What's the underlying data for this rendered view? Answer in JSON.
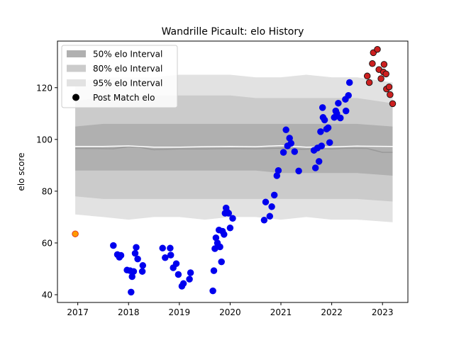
{
  "chart_data": {
    "type": "scatter",
    "title": "Wandrille Picault: elo History",
    "xlabel": "",
    "ylabel": "elo score",
    "xlim": [
      2016.6,
      2023.5
    ],
    "ylim": [
      37,
      138
    ],
    "xticks": [
      2017,
      2018,
      2019,
      2020,
      2021,
      2022,
      2023
    ],
    "xtick_labels": [
      "2017",
      "2018",
      "2019",
      "2020",
      "2021",
      "2022",
      "2023"
    ],
    "yticks": [
      40,
      60,
      80,
      100,
      120
    ],
    "ytick_labels": [
      "40",
      "60",
      "80",
      "100",
      "120"
    ],
    "grid": false,
    "legend_position": "top-left",
    "legend": [
      {
        "label": "50% elo Interval",
        "kind": "band",
        "color": "#b0b0b0"
      },
      {
        "label": "80% elo Interval",
        "kind": "band",
        "color": "#cbcbcb"
      },
      {
        "label": "95% elo Interval",
        "kind": "band",
        "color": "#e2e2e2"
      },
      {
        "label": "Post Match elo",
        "kind": "marker",
        "color": "#000000"
      }
    ],
    "bands": {
      "x": [
        2016.95,
        2017.5,
        2018.0,
        2018.5,
        2019.0,
        2019.5,
        2020.0,
        2020.5,
        2021.0,
        2021.5,
        2022.0,
        2022.5,
        2023.2
      ],
      "p95": {
        "upper": [
          122,
          124,
          124,
          124,
          125,
          125,
          125,
          124,
          124,
          125,
          124,
          124,
          122
        ],
        "lower": [
          71,
          70,
          69,
          70,
          70,
          69,
          70,
          70,
          69,
          70,
          69,
          69,
          68
        ],
        "color": "#e2e2e2"
      },
      "p80": {
        "upper": [
          115,
          116,
          117,
          117,
          117,
          117,
          117,
          116,
          116,
          116,
          116,
          116,
          114
        ],
        "lower": [
          78,
          77,
          77,
          77,
          77,
          77,
          77,
          77,
          77,
          77,
          77,
          77,
          76
        ],
        "color": "#cbcbcb"
      },
      "p50": {
        "upper": [
          105,
          106,
          106,
          106,
          106,
          106,
          106,
          106,
          106,
          106,
          106,
          106,
          105
        ],
        "lower": [
          88,
          88,
          88,
          88,
          88,
          88,
          88,
          88,
          87,
          87,
          87,
          87,
          86
        ],
        "color": "#b0b0b0"
      }
    },
    "median_line": {
      "x": [
        2016.95,
        2017.4,
        2017.7,
        2018.0,
        2018.2,
        2018.5,
        2019.0,
        2019.5,
        2020.0,
        2020.5,
        2021.0,
        2021.4,
        2021.8,
        2022.0,
        2022.3,
        2022.7,
        2023.0,
        2023.2
      ],
      "y": [
        96.5,
        96.5,
        96.4,
        97.2,
        97.0,
        96.0,
        96.3,
        96.3,
        96.5,
        96.4,
        96.6,
        96.2,
        96.4,
        96.3,
        96.6,
        96.5,
        95.0,
        95.0
      ],
      "color": "#999999"
    },
    "mean_line": {
      "x": [
        2016.95,
        2017.5,
        2018.0,
        2018.5,
        2019.0,
        2019.5,
        2020.0,
        2020.5,
        2021.0,
        2021.5,
        2022.0,
        2022.5,
        2023.2
      ],
      "y": [
        97.3,
        97.3,
        97.5,
        97.0,
        97.0,
        97.2,
        97.3,
        97.2,
        97.6,
        97.0,
        97.1,
        97.4,
        97.3
      ],
      "color": "#ffffff"
    },
    "series": [
      {
        "color": "#ff9a00",
        "edge": "#e03020",
        "points": [
          [
            2016.95,
            63.5
          ]
        ]
      },
      {
        "color": "#0000ee",
        "edge": "#0000ee",
        "points": [
          [
            2017.7,
            59.0
          ],
          [
            2017.78,
            55.5
          ],
          [
            2017.82,
            54.5
          ],
          [
            2017.85,
            55.2
          ],
          [
            2017.97,
            49.5
          ],
          [
            2018.03,
            49.3
          ],
          [
            2018.05,
            41.0
          ],
          [
            2018.07,
            47.0
          ],
          [
            2018.1,
            49.0
          ],
          [
            2018.13,
            56.0
          ],
          [
            2018.15,
            58.3
          ],
          [
            2018.18,
            53.8
          ],
          [
            2018.27,
            49.0
          ],
          [
            2018.28,
            51.3
          ],
          [
            2018.67,
            58.0
          ],
          [
            2018.72,
            54.3
          ],
          [
            2018.82,
            58.0
          ],
          [
            2018.83,
            55.3
          ],
          [
            2018.88,
            50.4
          ],
          [
            2018.94,
            52.0
          ],
          [
            2018.98,
            47.8
          ],
          [
            2019.05,
            43.3
          ],
          [
            2019.08,
            44.3
          ],
          [
            2019.2,
            46.0
          ],
          [
            2019.22,
            48.5
          ],
          [
            2019.66,
            41.5
          ],
          [
            2019.68,
            49.3
          ],
          [
            2019.7,
            57.8
          ],
          [
            2019.72,
            62.0
          ],
          [
            2019.75,
            60.0
          ],
          [
            2019.78,
            65.0
          ],
          [
            2019.8,
            58.5
          ],
          [
            2019.83,
            52.7
          ],
          [
            2019.85,
            64.5
          ],
          [
            2019.88,
            63.3
          ],
          [
            2019.9,
            71.5
          ],
          [
            2019.92,
            73.5
          ],
          [
            2019.94,
            72.0
          ],
          [
            2019.97,
            71.5
          ],
          [
            2020.0,
            65.8
          ],
          [
            2020.05,
            69.5
          ],
          [
            2020.67,
            68.8
          ],
          [
            2020.7,
            75.8
          ],
          [
            2020.78,
            70.3
          ],
          [
            2020.82,
            74.0
          ],
          [
            2020.87,
            78.5
          ],
          [
            2020.92,
            86.0
          ],
          [
            2020.95,
            88.0
          ],
          [
            2021.05,
            95.0
          ],
          [
            2021.1,
            103.7
          ],
          [
            2021.13,
            97.5
          ],
          [
            2021.17,
            100.5
          ],
          [
            2021.2,
            98.5
          ],
          [
            2021.27,
            95.3
          ],
          [
            2021.35,
            87.8
          ],
          [
            2021.65,
            95.8
          ],
          [
            2021.68,
            89.0
          ],
          [
            2021.72,
            96.7
          ],
          [
            2021.75,
            91.5
          ],
          [
            2021.78,
            103.0
          ],
          [
            2021.8,
            97.5
          ],
          [
            2021.82,
            112.3
          ],
          [
            2021.83,
            108.5
          ],
          [
            2021.86,
            107.5
          ],
          [
            2021.9,
            104.0
          ],
          [
            2021.93,
            104.5
          ],
          [
            2021.96,
            98.8
          ],
          [
            2022.05,
            108.5
          ],
          [
            2022.08,
            111.0
          ],
          [
            2022.1,
            110.0
          ],
          [
            2022.13,
            114.0
          ],
          [
            2022.17,
            108.3
          ],
          [
            2022.27,
            115.5
          ],
          [
            2022.28,
            111.0
          ],
          [
            2022.33,
            117.0
          ],
          [
            2022.35,
            122.0
          ]
        ]
      },
      {
        "color": "#cc2020",
        "edge": "#111111",
        "points": [
          [
            2022.7,
            124.5
          ],
          [
            2022.74,
            122.0
          ],
          [
            2022.8,
            129.3
          ],
          [
            2022.82,
            133.5
          ],
          [
            2022.9,
            134.8
          ],
          [
            2022.93,
            127.0
          ],
          [
            2022.97,
            123.5
          ],
          [
            2023.02,
            126.0
          ],
          [
            2023.03,
            129.0
          ],
          [
            2023.07,
            125.3
          ],
          [
            2023.08,
            119.5
          ],
          [
            2023.13,
            120.3
          ],
          [
            2023.15,
            117.3
          ],
          [
            2023.2,
            113.8
          ]
        ]
      }
    ]
  }
}
